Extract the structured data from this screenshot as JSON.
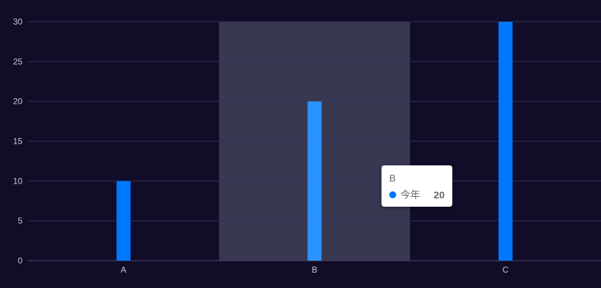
{
  "chart_data": {
    "type": "bar",
    "categories": [
      "A",
      "B",
      "C"
    ],
    "series": [
      {
        "name": "今年",
        "values": [
          10,
          20,
          30
        ]
      }
    ],
    "ylim": [
      0,
      30
    ],
    "yticks": [
      0,
      5,
      10,
      15,
      20,
      25,
      30
    ],
    "grid": true,
    "highlighted_category": "B"
  },
  "tooltip": {
    "title": "B",
    "series_name": "今年",
    "value": "20"
  },
  "colors": {
    "background": "#110d29",
    "bar": "#0077ff",
    "bar_highlight": "#2b93ff",
    "hover_band": "#383852",
    "grid": "#34304f",
    "axis_text": "#c9c8d6"
  }
}
